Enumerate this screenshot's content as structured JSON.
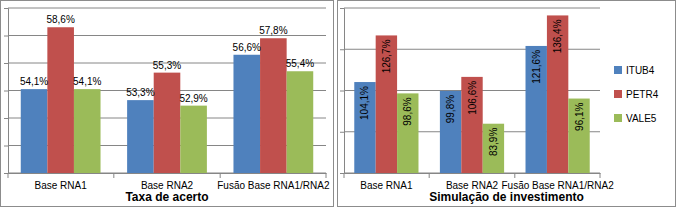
{
  "chart_data": [
    {
      "type": "bar",
      "title": "Taxa de acerto",
      "categories": [
        "Base RNA1",
        "Base RNA2",
        "Fusão Base RNA1/RNA2"
      ],
      "series": [
        {
          "color": "#4F81BD",
          "values": [
            54.1,
            53.3,
            56.6
          ],
          "value_labels": [
            "54,1%",
            "53,3%",
            "56,6%"
          ]
        },
        {
          "color": "#C0504D",
          "values": [
            58.6,
            55.3,
            57.8
          ],
          "value_labels": [
            "58,6%",
            "55,3%",
            "57,8%"
          ]
        },
        {
          "color": "#9BBB59",
          "values": [
            54.1,
            52.9,
            55.4
          ],
          "value_labels": [
            "54,1%",
            "52,9%",
            "55,4%"
          ]
        }
      ],
      "ylim": [
        48,
        60
      ],
      "yticks": [
        48,
        50,
        52,
        54,
        56,
        58,
        60
      ],
      "grid": true,
      "data_labels": true,
      "tick_labels": "x"
    },
    {
      "type": "bar",
      "title": "Simulação de investimento",
      "categories": [
        "Base RNA1",
        "Base RNA2",
        "Fusão Base RNA1/RNA2"
      ],
      "series": [
        {
          "name": "ITUB4",
          "color": "#4F81BD",
          "values": [
            104.1,
            99.8,
            121.6
          ],
          "value_labels": [
            "104,1%",
            "99,8%",
            "121,6%"
          ]
        },
        {
          "name": "PETR4",
          "color": "#C0504D",
          "values": [
            126.7,
            106.6,
            136.4
          ],
          "value_labels": [
            "126,7%",
            "106,6%",
            "136,4%"
          ]
        },
        {
          "name": "VALE5",
          "color": "#9BBB59",
          "values": [
            98.6,
            83.9,
            96.1
          ],
          "value_labels": [
            "98,6%",
            "83,9%",
            "96,1%"
          ]
        }
      ],
      "ylim": [
        60,
        140
      ],
      "yticks": [
        60,
        80,
        100,
        120,
        140
      ],
      "grid": true,
      "data_labels": true,
      "tick_labels": "x",
      "legend": "right"
    }
  ]
}
